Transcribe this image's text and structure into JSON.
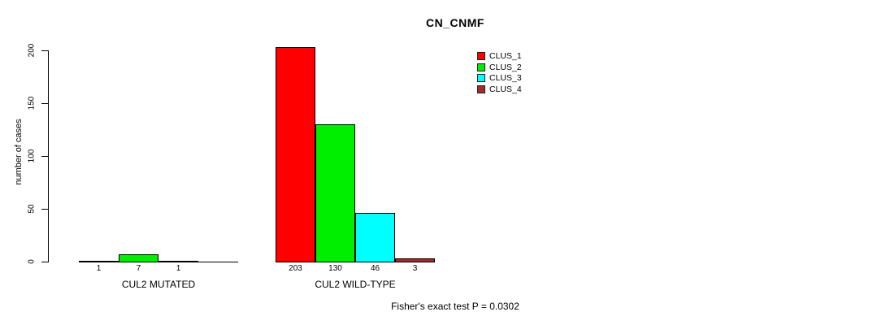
{
  "chart_data": {
    "type": "bar",
    "title": "CN_CNMF",
    "ylabel": "number of cases",
    "xlabel": "",
    "ylim": [
      0,
      200
    ],
    "yticks": [
      0,
      50,
      100,
      150,
      200
    ],
    "grid": false,
    "legend_position": "top-right-inside",
    "categories": [
      "CUL2 MUTATED",
      "CUL2 WILD-TYPE"
    ],
    "series": [
      {
        "name": "CLUS_1",
        "color": "#ff0000",
        "values": [
          1,
          203
        ]
      },
      {
        "name": "CLUS_2",
        "color": "#00ee00",
        "values": [
          7,
          130
        ]
      },
      {
        "name": "CLUS_3",
        "color": "#00ffff",
        "values": [
          1,
          46
        ]
      },
      {
        "name": "CLUS_4",
        "color": "#a52a2a",
        "values": [
          0,
          3
        ]
      }
    ],
    "bar_value_labels": [
      [
        "1",
        "7",
        "1",
        ""
      ],
      [
        "203",
        "130",
        "46",
        "3"
      ]
    ],
    "annotation": "Fisher's exact test P = 0.0302",
    "colors": {
      "background": "#ffffff",
      "axis": "#000000",
      "text": "#000000"
    }
  }
}
